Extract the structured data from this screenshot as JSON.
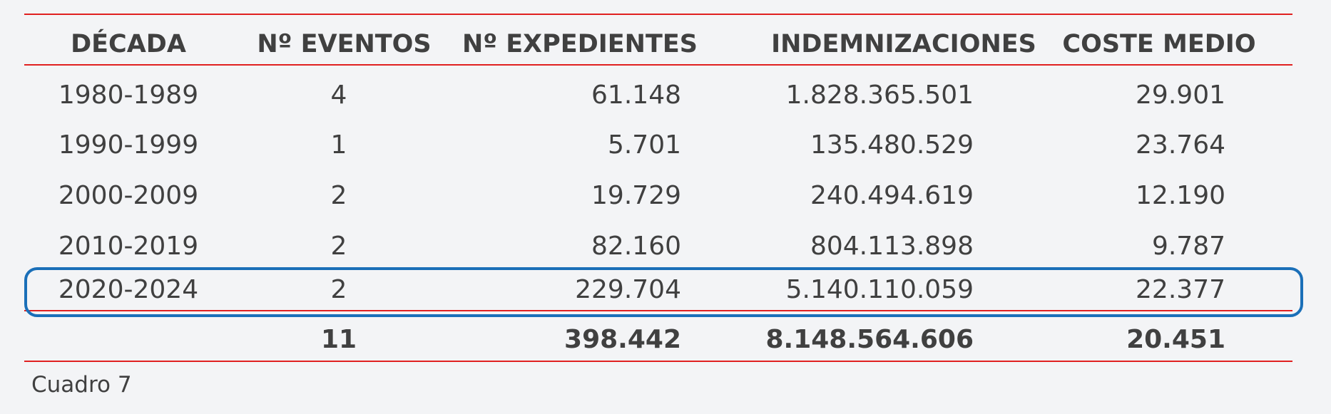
{
  "table": {
    "headers": [
      "DÉCADA",
      "Nº EVENTOS",
      "Nº EXPEDIENTES",
      "INDEMNIZACIONES",
      "COSTE MEDIO"
    ],
    "rows": [
      {
        "decada": "1980-1989",
        "eventos": "4",
        "expedientes": "61.148",
        "indemnizaciones": "1.828.365.501",
        "coste": "29.901"
      },
      {
        "decada": "1990-1999",
        "eventos": "1",
        "expedientes": "5.701",
        "indemnizaciones": "135.480.529",
        "coste": "23.764"
      },
      {
        "decada": "2000-2009",
        "eventos": "2",
        "expedientes": "19.729",
        "indemnizaciones": "240.494.619",
        "coste": "12.190"
      },
      {
        "decada": "2010-2019",
        "eventos": "2",
        "expedientes": "82.160",
        "indemnizaciones": "804.113.898",
        "coste": "9.787"
      },
      {
        "decada": "2020-2024",
        "eventos": "2",
        "expedientes": "229.704",
        "indemnizaciones": "5.140.110.059",
        "coste": "22.377"
      }
    ],
    "total": {
      "eventos": "11",
      "expedientes": "398.442",
      "indemnizaciones": "8.148.564.606",
      "coste": "20.451"
    }
  },
  "caption": "Cuadro 7",
  "colors": {
    "rules": "#e02020",
    "highlight": "#1a6fb8",
    "background": "#f3f4f6"
  }
}
